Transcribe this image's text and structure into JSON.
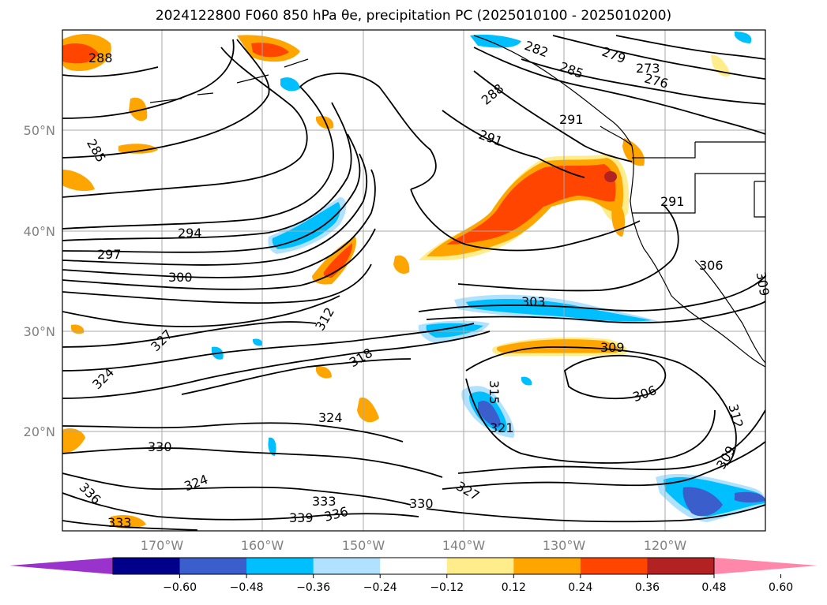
{
  "title": "2024122800 F060 850 hPa θe, precipitation PC (2025010100 - 2025010200)",
  "map": {
    "lat_ticks": [
      "50°N",
      "40°N",
      "30°N",
      "20°N"
    ],
    "lon_ticks": [
      "170°W",
      "160°W",
      "150°W",
      "140°W",
      "130°W",
      "120°W"
    ],
    "contour_labels": [
      "288",
      "285",
      "294",
      "297",
      "300",
      "312",
      "327",
      "324",
      "318",
      "324",
      "330",
      "324",
      "336",
      "333",
      "333",
      "336",
      "339",
      "330",
      "327",
      "303",
      "309",
      "306",
      "315",
      "321",
      "312",
      "309",
      "306",
      "309",
      "291",
      "291",
      "288",
      "282",
      "285",
      "279",
      "273",
      "276",
      "291"
    ]
  },
  "colorbar": {
    "ticks": [
      "−0.60",
      "−0.48",
      "−0.36",
      "−0.24",
      "−0.12",
      "0.12",
      "0.24",
      "0.36",
      "0.48",
      "0.60"
    ],
    "colors": [
      "#9933cc",
      "#00008b",
      "#3a5fcd",
      "#00bfff",
      "#b0e2ff",
      "#ffffff",
      "#ffec8b",
      "#ffa500",
      "#ff4500",
      "#b22222",
      "#ff88aa"
    ]
  }
}
